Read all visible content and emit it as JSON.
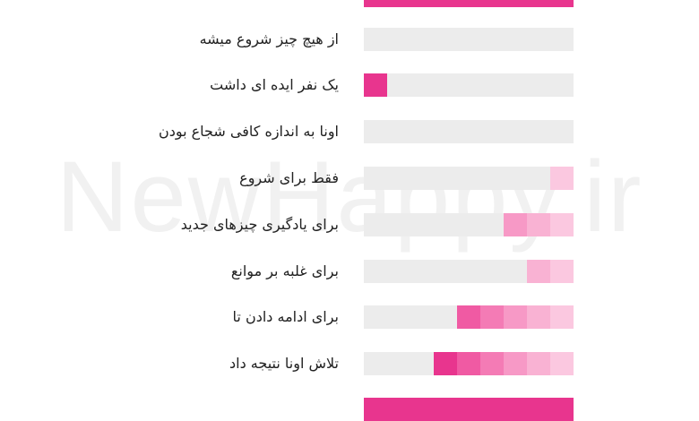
{
  "watermark": "NewHappy.ir",
  "palette": [
    "#e8358e",
    "#f05aa3",
    "#f47bb5",
    "#f799c6",
    "#f9b2d3",
    "#fbc8e0"
  ],
  "scale_steps": 9,
  "rows": [
    {
      "label": "",
      "level": 9
    },
    {
      "label": "از هیچ چیز شروع میشه",
      "level": 0
    },
    {
      "label": "یک نفر ایده ای داشت",
      "level": 1,
      "accent": true
    },
    {
      "label": "اونا به اندازه کافی شجاع بودن",
      "level": 0
    },
    {
      "label": "فقط برای شروع",
      "level": 1
    },
    {
      "label": "برای یادگیری چیزهای جدید",
      "level": 3
    },
    {
      "label": "برای غلبه بر موانع",
      "level": 2
    },
    {
      "label": "برای ادامه دادن تا",
      "level": 5
    },
    {
      "label": "تلاش اونا نتیجه داد",
      "level": 7
    },
    {
      "label": "",
      "level": 9
    }
  ]
}
